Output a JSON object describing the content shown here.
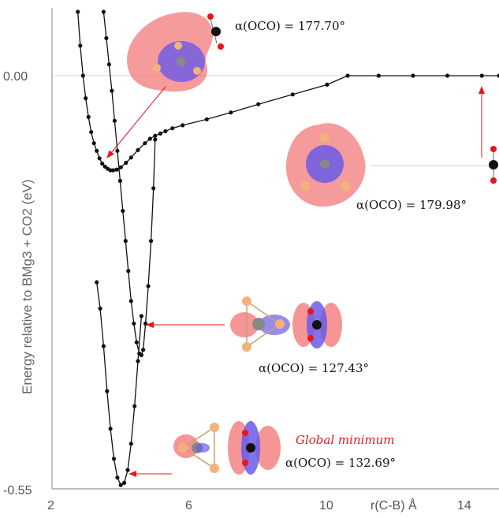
{
  "chart_data": {
    "type": "line",
    "ylabel": "Energy relative to BMg3 + CO2 (eV)",
    "xlabel": "r(C-B) Å",
    "xlim": [
      2,
      15
    ],
    "ylim": [
      -0.55,
      0.09
    ],
    "x_ticks": [
      "2",
      "6",
      "10",
      "14"
    ],
    "y_ticks": [
      "0.00",
      "-0.55"
    ],
    "series": [
      {
        "x": [
          2.75,
          2.82,
          2.9,
          2.98,
          3.06,
          3.14,
          3.22,
          3.3,
          3.38,
          3.46,
          3.54,
          3.62,
          3.7,
          3.78,
          3.88,
          4.0,
          4.15,
          4.3,
          4.5,
          4.7,
          4.85,
          5.0,
          5.15,
          5.3,
          5.5,
          5.8,
          6.5,
          7.2,
          8.0,
          9.0,
          10.0,
          10.6,
          11.5,
          12.5,
          13.5,
          14.5,
          15.0
        ],
        "y": [
          0.085,
          0.04,
          0.0,
          -0.03,
          -0.055,
          -0.075,
          -0.09,
          -0.1,
          -0.11,
          -0.117,
          -0.121,
          -0.124,
          -0.126,
          -0.126,
          -0.125,
          -0.122,
          -0.116,
          -0.109,
          -0.099,
          -0.09,
          -0.084,
          -0.08,
          -0.077,
          -0.074,
          -0.07,
          -0.066,
          -0.058,
          -0.049,
          -0.038,
          -0.025,
          -0.012,
          0.0,
          0.0,
          0.0,
          0.0,
          0.0,
          0.0
        ]
      },
      {
        "x": [
          3.5,
          3.58,
          3.66,
          3.74,
          3.82,
          3.9,
          3.98,
          4.06,
          4.14,
          4.22,
          4.3,
          4.38,
          4.46,
          4.54,
          4.6,
          4.65,
          4.72,
          4.8,
          4.88,
          4.95,
          5.0
        ],
        "y": [
          0.085,
          0.05,
          0.015,
          -0.02,
          -0.06,
          -0.1,
          -0.14,
          -0.18,
          -0.22,
          -0.26,
          -0.3,
          -0.33,
          -0.355,
          -0.37,
          -0.372,
          -0.365,
          -0.33,
          -0.28,
          -0.22,
          -0.15,
          -0.085
        ]
      },
      {
        "x": [
          3.3,
          3.4,
          3.5,
          3.6,
          3.7,
          3.8,
          3.9,
          4.0,
          4.1,
          4.2,
          4.3,
          4.4,
          4.5,
          4.6
        ],
        "y": [
          -0.275,
          -0.31,
          -0.36,
          -0.42,
          -0.47,
          -0.51,
          -0.535,
          -0.545,
          -0.542,
          -0.525,
          -0.49,
          -0.44,
          -0.38,
          -0.32
        ]
      }
    ]
  },
  "annotations": {
    "a1": "α(OCO) = 177.70°",
    "a2": "α(OCO) = 179.98°",
    "a3": "α(OCO) = 127.43°",
    "a4": "α(OCO) = 132.69°",
    "global": "Global minimum"
  },
  "colors": {
    "arrow": "#e8141e",
    "positive_lobe": "#f27a7a",
    "negative_lobe": "#6b5ae6",
    "curve": "#111111"
  }
}
